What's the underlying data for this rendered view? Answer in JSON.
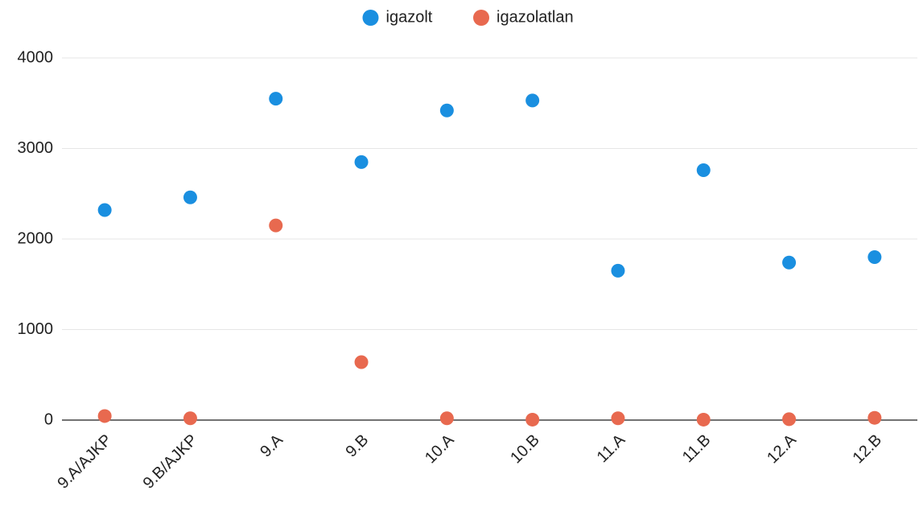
{
  "chart_data": {
    "type": "scatter",
    "categories": [
      "9.A/AJKP",
      "9.B/AJKP",
      "9.A",
      "9.B",
      "10.A",
      "10.B",
      "11.A",
      "11.B",
      "12.A",
      "12.B"
    ],
    "series": [
      {
        "name": "igazolt",
        "color": "#1a8fe0",
        "values": [
          2320,
          2460,
          3550,
          2850,
          3420,
          3530,
          1650,
          2760,
          1740,
          1800
        ]
      },
      {
        "name": "igazolatlan",
        "color": "#e8694f",
        "values": [
          45,
          20,
          2150,
          640,
          20,
          5,
          20,
          5,
          10,
          25
        ]
      }
    ],
    "ylim": [
      0,
      4000
    ],
    "yticks": [
      0,
      1000,
      2000,
      3000,
      4000
    ],
    "grid": true,
    "legend": "top"
  }
}
